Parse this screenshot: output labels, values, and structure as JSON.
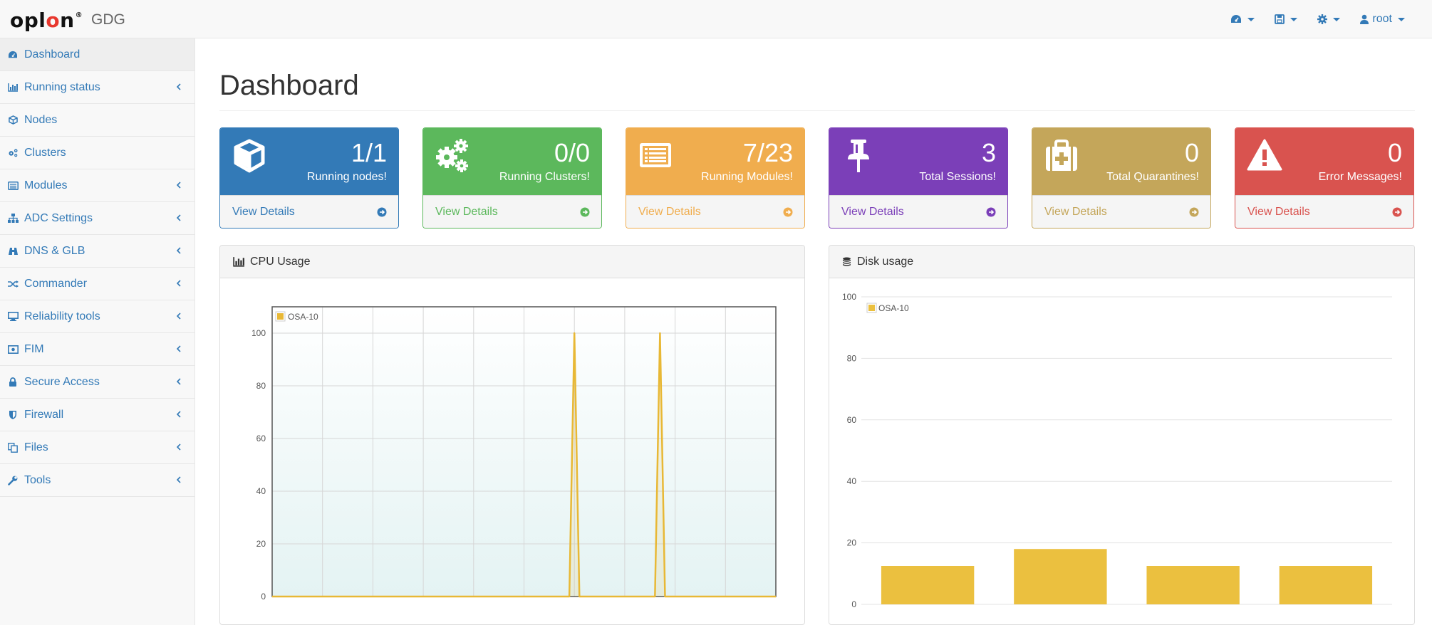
{
  "app": {
    "logo_text": "oplon",
    "subtitle": "GDG"
  },
  "topnav": {
    "items": [
      {
        "icon": "dashboard-icon"
      },
      {
        "icon": "save-icon"
      },
      {
        "icon": "gear-icon"
      },
      {
        "icon": "user-icon",
        "label": "root"
      }
    ]
  },
  "sidebar": {
    "items": [
      {
        "label": "Dashboard",
        "icon": "dashboard-icon",
        "active": true
      },
      {
        "label": "Running status",
        "icon": "bar-chart-icon",
        "expandable": true
      },
      {
        "label": "Nodes",
        "icon": "cube-icon"
      },
      {
        "label": "Clusters",
        "icon": "gears-icon"
      },
      {
        "label": "Modules",
        "icon": "list-icon",
        "expandable": true
      },
      {
        "label": "ADC Settings",
        "icon": "sitemap-icon",
        "expandable": true
      },
      {
        "label": "DNS & GLB",
        "icon": "binoculars-icon",
        "expandable": true
      },
      {
        "label": "Commander",
        "icon": "random-icon",
        "expandable": true
      },
      {
        "label": "Reliability tools",
        "icon": "desktop-icon",
        "expandable": true
      },
      {
        "label": "FIM",
        "icon": "money-icon",
        "expandable": true
      },
      {
        "label": "Secure Access",
        "icon": "lock-icon",
        "expandable": true
      },
      {
        "label": "Firewall",
        "icon": "shield-icon",
        "expandable": true
      },
      {
        "label": "Files",
        "icon": "files-icon",
        "expandable": true
      },
      {
        "label": "Tools",
        "icon": "wrench-icon",
        "expandable": true
      }
    ]
  },
  "page": {
    "title": "Dashboard"
  },
  "panels": [
    {
      "value": "1/1",
      "label": "Running nodes!",
      "link": "View Details",
      "icon": "cube-icon",
      "color": "#337ab7"
    },
    {
      "value": "0/0",
      "label": "Running Clusters!",
      "link": "View Details",
      "icon": "gears-icon",
      "color": "#5cb85c"
    },
    {
      "value": "7/23",
      "label": "Running Modules!",
      "link": "View Details",
      "icon": "list-alt-icon",
      "color": "#f0ad4e"
    },
    {
      "value": "3",
      "label": "Total Sessions!",
      "link": "View Details",
      "icon": "thumbtack-icon",
      "color": "#7b3fb8"
    },
    {
      "value": "0",
      "label": "Total Quarantines!",
      "link": "View Details",
      "icon": "medkit-icon",
      "color": "#c4a65a"
    },
    {
      "value": "0",
      "label": "Error Messages!",
      "link": "View Details",
      "icon": "warning-icon",
      "color": "#d9534f"
    }
  ],
  "cpu_panel": {
    "title": "CPU Usage",
    "icon": "bar-chart-icon"
  },
  "disk_panel": {
    "title": "Disk usage",
    "icon": "database-icon"
  },
  "chart_data": [
    {
      "type": "area",
      "title": "",
      "ylim": [
        0,
        110
      ],
      "yticks": [
        0,
        20,
        40,
        60,
        80,
        100
      ],
      "grid": true,
      "legend": "top-left",
      "series": [
        {
          "name": "OSA-10",
          "color": "#e8b835",
          "x": [
            0,
            1,
            2,
            3,
            4,
            5,
            6,
            7,
            8,
            9,
            10,
            11,
            12,
            13,
            14,
            15,
            16,
            17,
            18,
            19,
            20,
            21,
            22,
            23,
            24,
            25,
            26,
            27,
            28,
            29,
            30,
            31,
            32,
            33,
            34,
            35,
            36,
            37,
            38,
            39,
            40,
            41,
            42,
            43,
            44,
            45,
            46,
            47,
            48,
            49,
            50,
            51,
            52,
            53,
            54,
            55,
            56,
            57,
            58,
            59,
            60,
            61,
            62,
            63,
            64,
            65,
            66,
            67,
            68,
            69,
            70,
            71,
            72,
            73,
            74,
            75,
            76,
            77,
            78,
            79,
            80,
            81,
            82,
            83,
            84,
            85,
            86,
            87,
            88,
            89,
            90,
            91,
            92,
            93,
            94,
            95,
            96,
            97,
            98,
            99,
            100
          ],
          "values": [
            0,
            0,
            0,
            0,
            0,
            0,
            0,
            0,
            0,
            0,
            0,
            0,
            0,
            0,
            0,
            0,
            0,
            0,
            0,
            0,
            0,
            0,
            0,
            0,
            0,
            0,
            0,
            0,
            0,
            0,
            0,
            0,
            0,
            0,
            0,
            0,
            0,
            0,
            0,
            0,
            0,
            0,
            0,
            0,
            0,
            0,
            0,
            0,
            0,
            0,
            0,
            0,
            0,
            0,
            0,
            0,
            0,
            0,
            0,
            0,
            100,
            0,
            0,
            0,
            0,
            0,
            0,
            0,
            0,
            0,
            0,
            0,
            0,
            0,
            0,
            0,
            0,
            100,
            0,
            0,
            0,
            0,
            0,
            0,
            0,
            0,
            0,
            0,
            0,
            0,
            0,
            0,
            0,
            0,
            0,
            0,
            0,
            0,
            0,
            0,
            0
          ]
        }
      ]
    },
    {
      "type": "bar",
      "title": "",
      "ylim": [
        0,
        100
      ],
      "yticks": [
        0,
        20,
        40,
        60,
        80,
        100
      ],
      "grid": true,
      "legend": "top-left",
      "series": [
        {
          "name": "OSA-10",
          "color": "#ebc03f",
          "values": [
            12.5,
            18,
            12.5,
            12.5
          ]
        }
      ]
    }
  ]
}
